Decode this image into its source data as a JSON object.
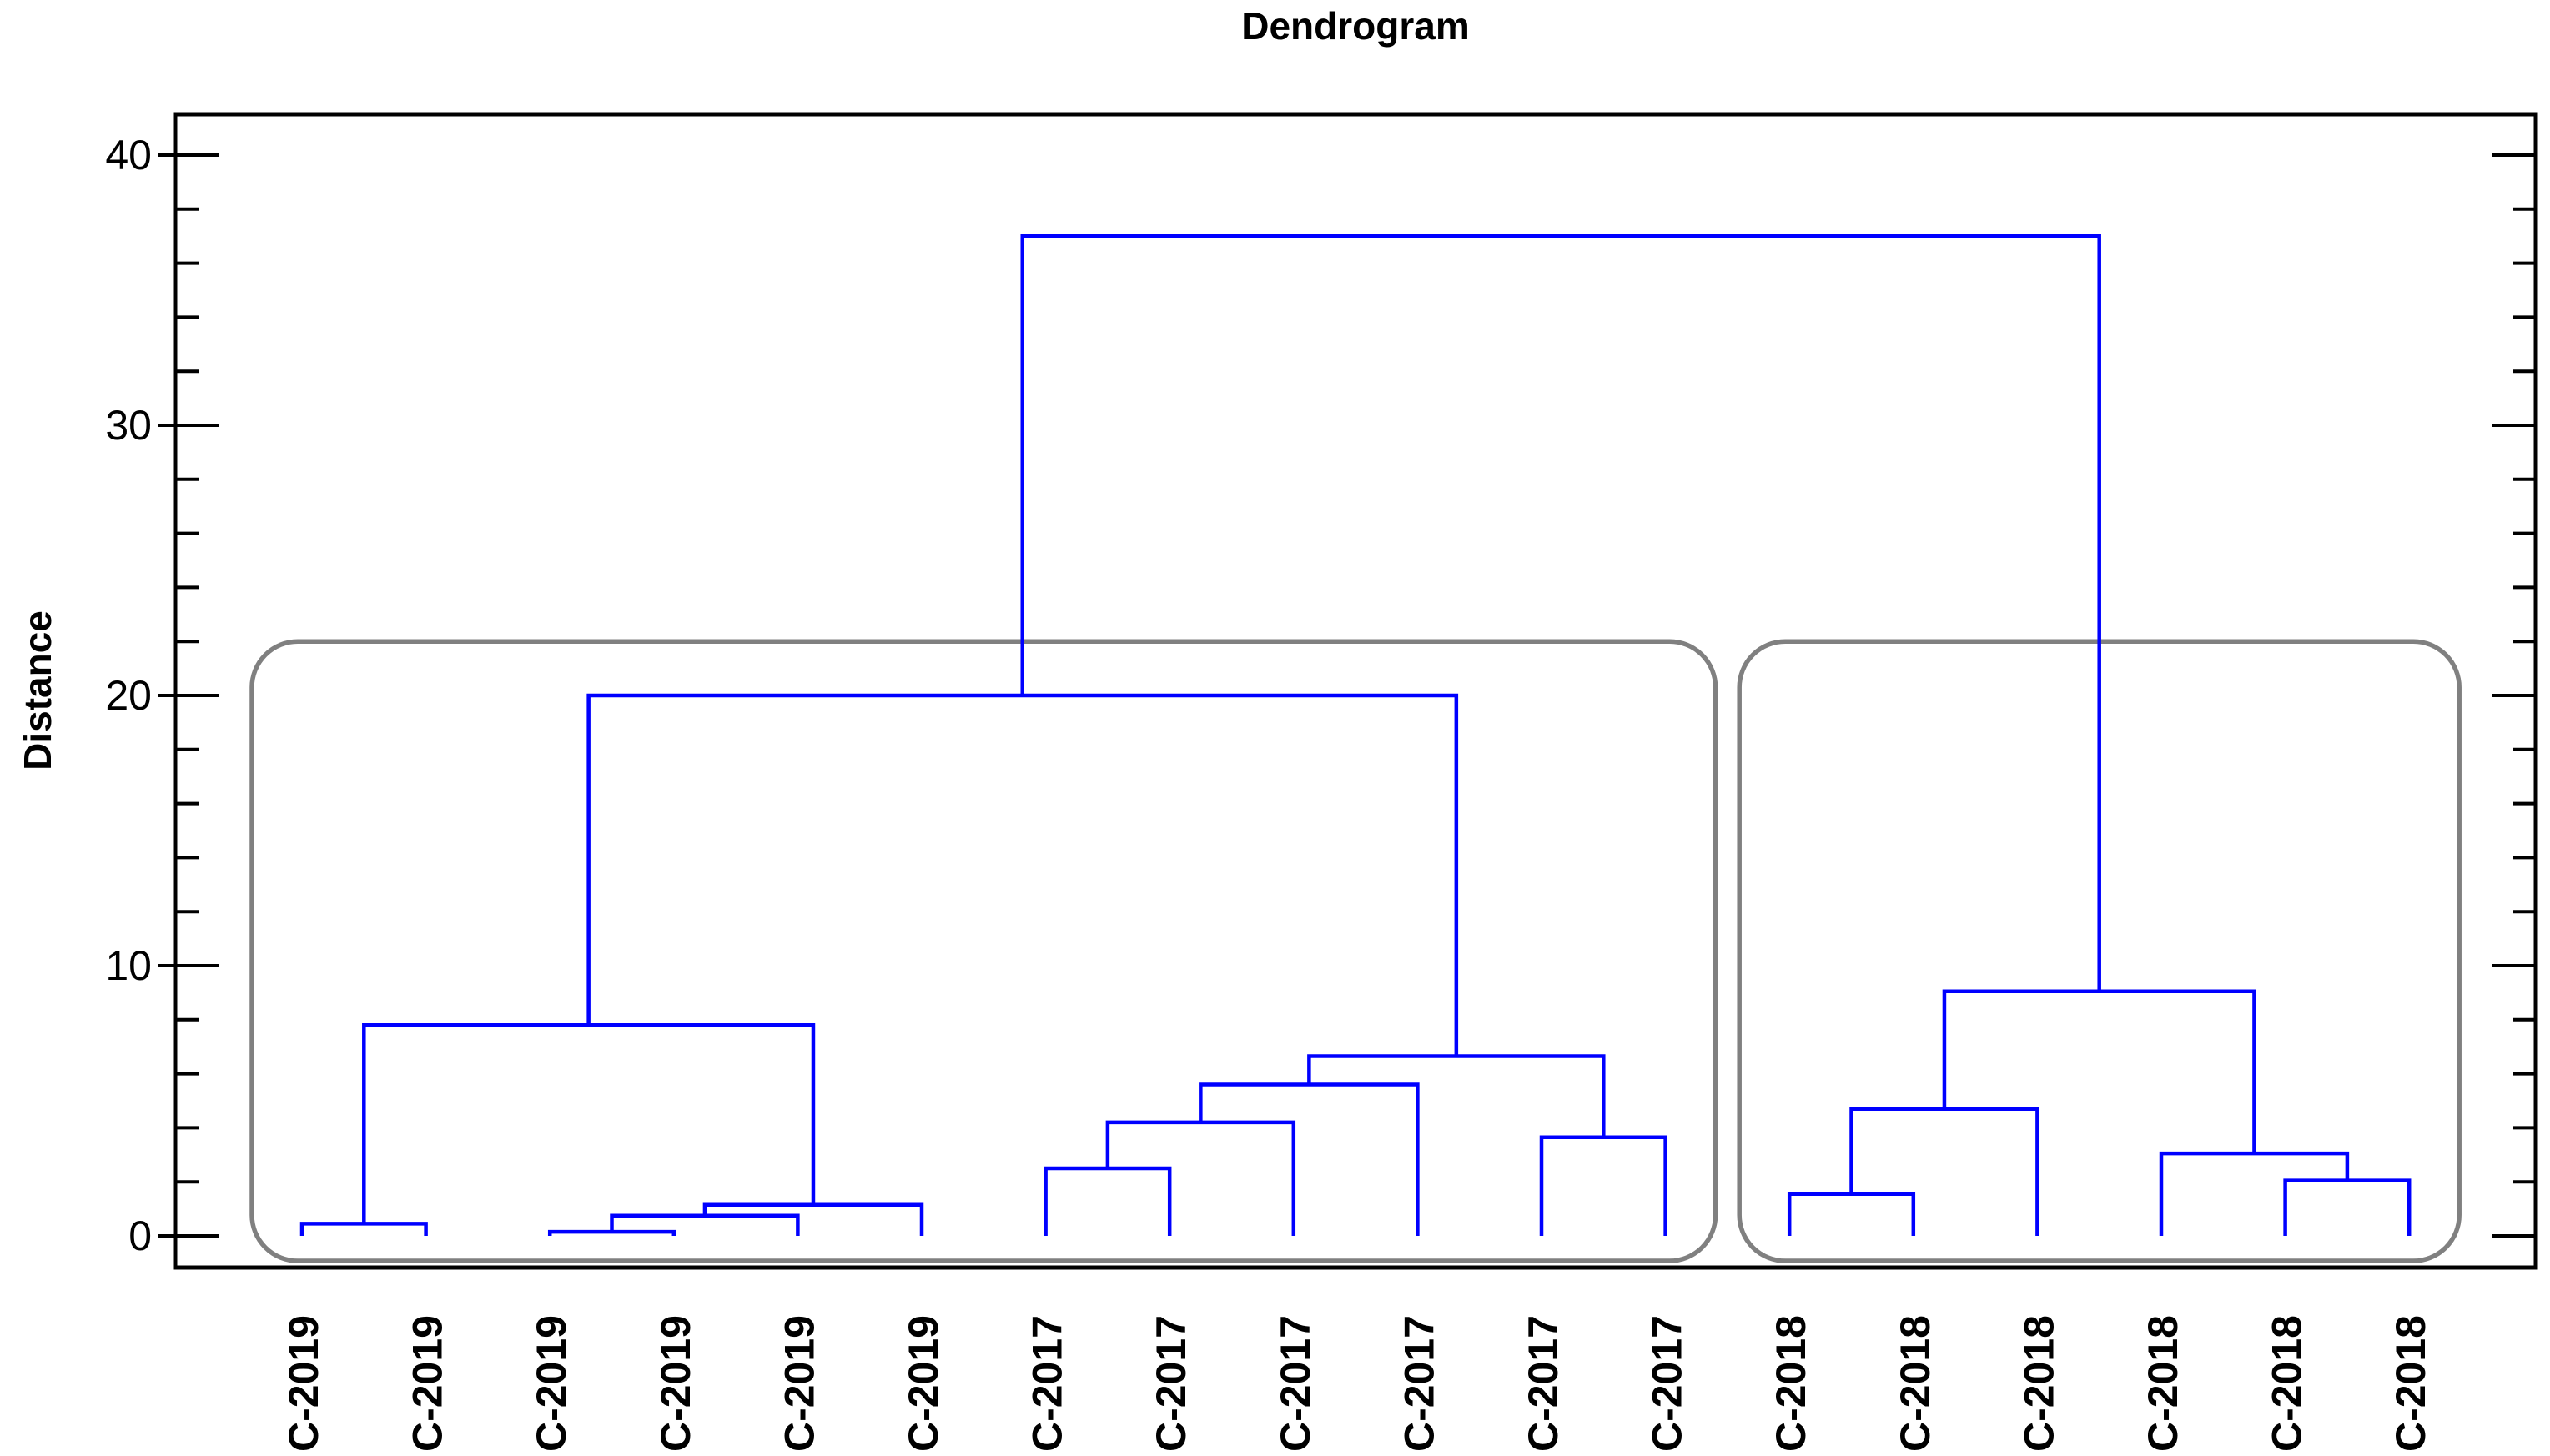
{
  "title": "Dendrogram",
  "y_axis": {
    "label": "Distance",
    "major_ticks": [
      0,
      10,
      20,
      30,
      40
    ],
    "minor_tick_step": 2,
    "max": 41.5
  },
  "x_axis": {
    "labels": [
      "C-2019",
      "C-2019",
      "C-2019",
      "C-2019",
      "C-2019",
      "C-2019",
      "C-2017",
      "C-2017",
      "C-2017",
      "C-2017",
      "C-2017",
      "C-2017",
      "C-2018",
      "C-2018",
      "C-2018",
      "C-2018",
      "C-2018",
      "C-2018"
    ]
  },
  "chart_data": {
    "type": "dendrogram",
    "title": "Dendrogram",
    "ylabel": "Distance",
    "ylim": [
      0,
      41.5
    ],
    "grid": false,
    "line_color": "#0000ff",
    "box_color": "#808080",
    "axis_color": "#000000",
    "leaves": [
      "C-2019",
      "C-2019",
      "C-2019",
      "C-2019",
      "C-2019",
      "C-2019",
      "C-2017",
      "C-2017",
      "C-2017",
      "C-2017",
      "C-2017",
      "C-2017",
      "C-2018",
      "C-2018",
      "C-2018",
      "C-2018",
      "C-2018",
      "C-2018"
    ],
    "merges": [
      {
        "id": "M1",
        "a": "L0",
        "b": "L1",
        "height": 0.45
      },
      {
        "id": "M2",
        "a": "L2",
        "b": "L3",
        "height": 0.15
      },
      {
        "id": "M3",
        "a": "M2",
        "b": "L4",
        "height": 0.75
      },
      {
        "id": "M4",
        "a": "M3",
        "b": "L5",
        "height": 1.15
      },
      {
        "id": "M5",
        "a": "M1",
        "b": "M4",
        "height": 7.8
      },
      {
        "id": "M6",
        "a": "L6",
        "b": "L7",
        "height": 2.5
      },
      {
        "id": "M7",
        "a": "M6",
        "b": "L8",
        "height": 4.2
      },
      {
        "id": "M8",
        "a": "M7",
        "b": "L9",
        "height": 5.6
      },
      {
        "id": "M9",
        "a": "L10",
        "b": "L11",
        "height": 3.65
      },
      {
        "id": "M10",
        "a": "M8",
        "b": "M9",
        "height": 6.65
      },
      {
        "id": "M11",
        "a": "M5",
        "b": "M10",
        "height": 20
      },
      {
        "id": "M12",
        "a": "L12",
        "b": "L13",
        "height": 1.55
      },
      {
        "id": "M13",
        "a": "M12",
        "b": "L14",
        "height": 4.7
      },
      {
        "id": "M14",
        "a": "L16",
        "b": "L17",
        "height": 2.05
      },
      {
        "id": "M15",
        "a": "L15",
        "b": "M14",
        "height": 3.05
      },
      {
        "id": "M16",
        "a": "M13",
        "b": "M15",
        "height": 9.05
      },
      {
        "id": "M17",
        "a": "M11",
        "b": "M16",
        "height": 37
      }
    ],
    "cluster_boxes": [
      {
        "first_leaf": 0,
        "last_leaf": 11,
        "top_height": 22
      },
      {
        "first_leaf": 12,
        "last_leaf": 17,
        "top_height": 22
      }
    ]
  }
}
